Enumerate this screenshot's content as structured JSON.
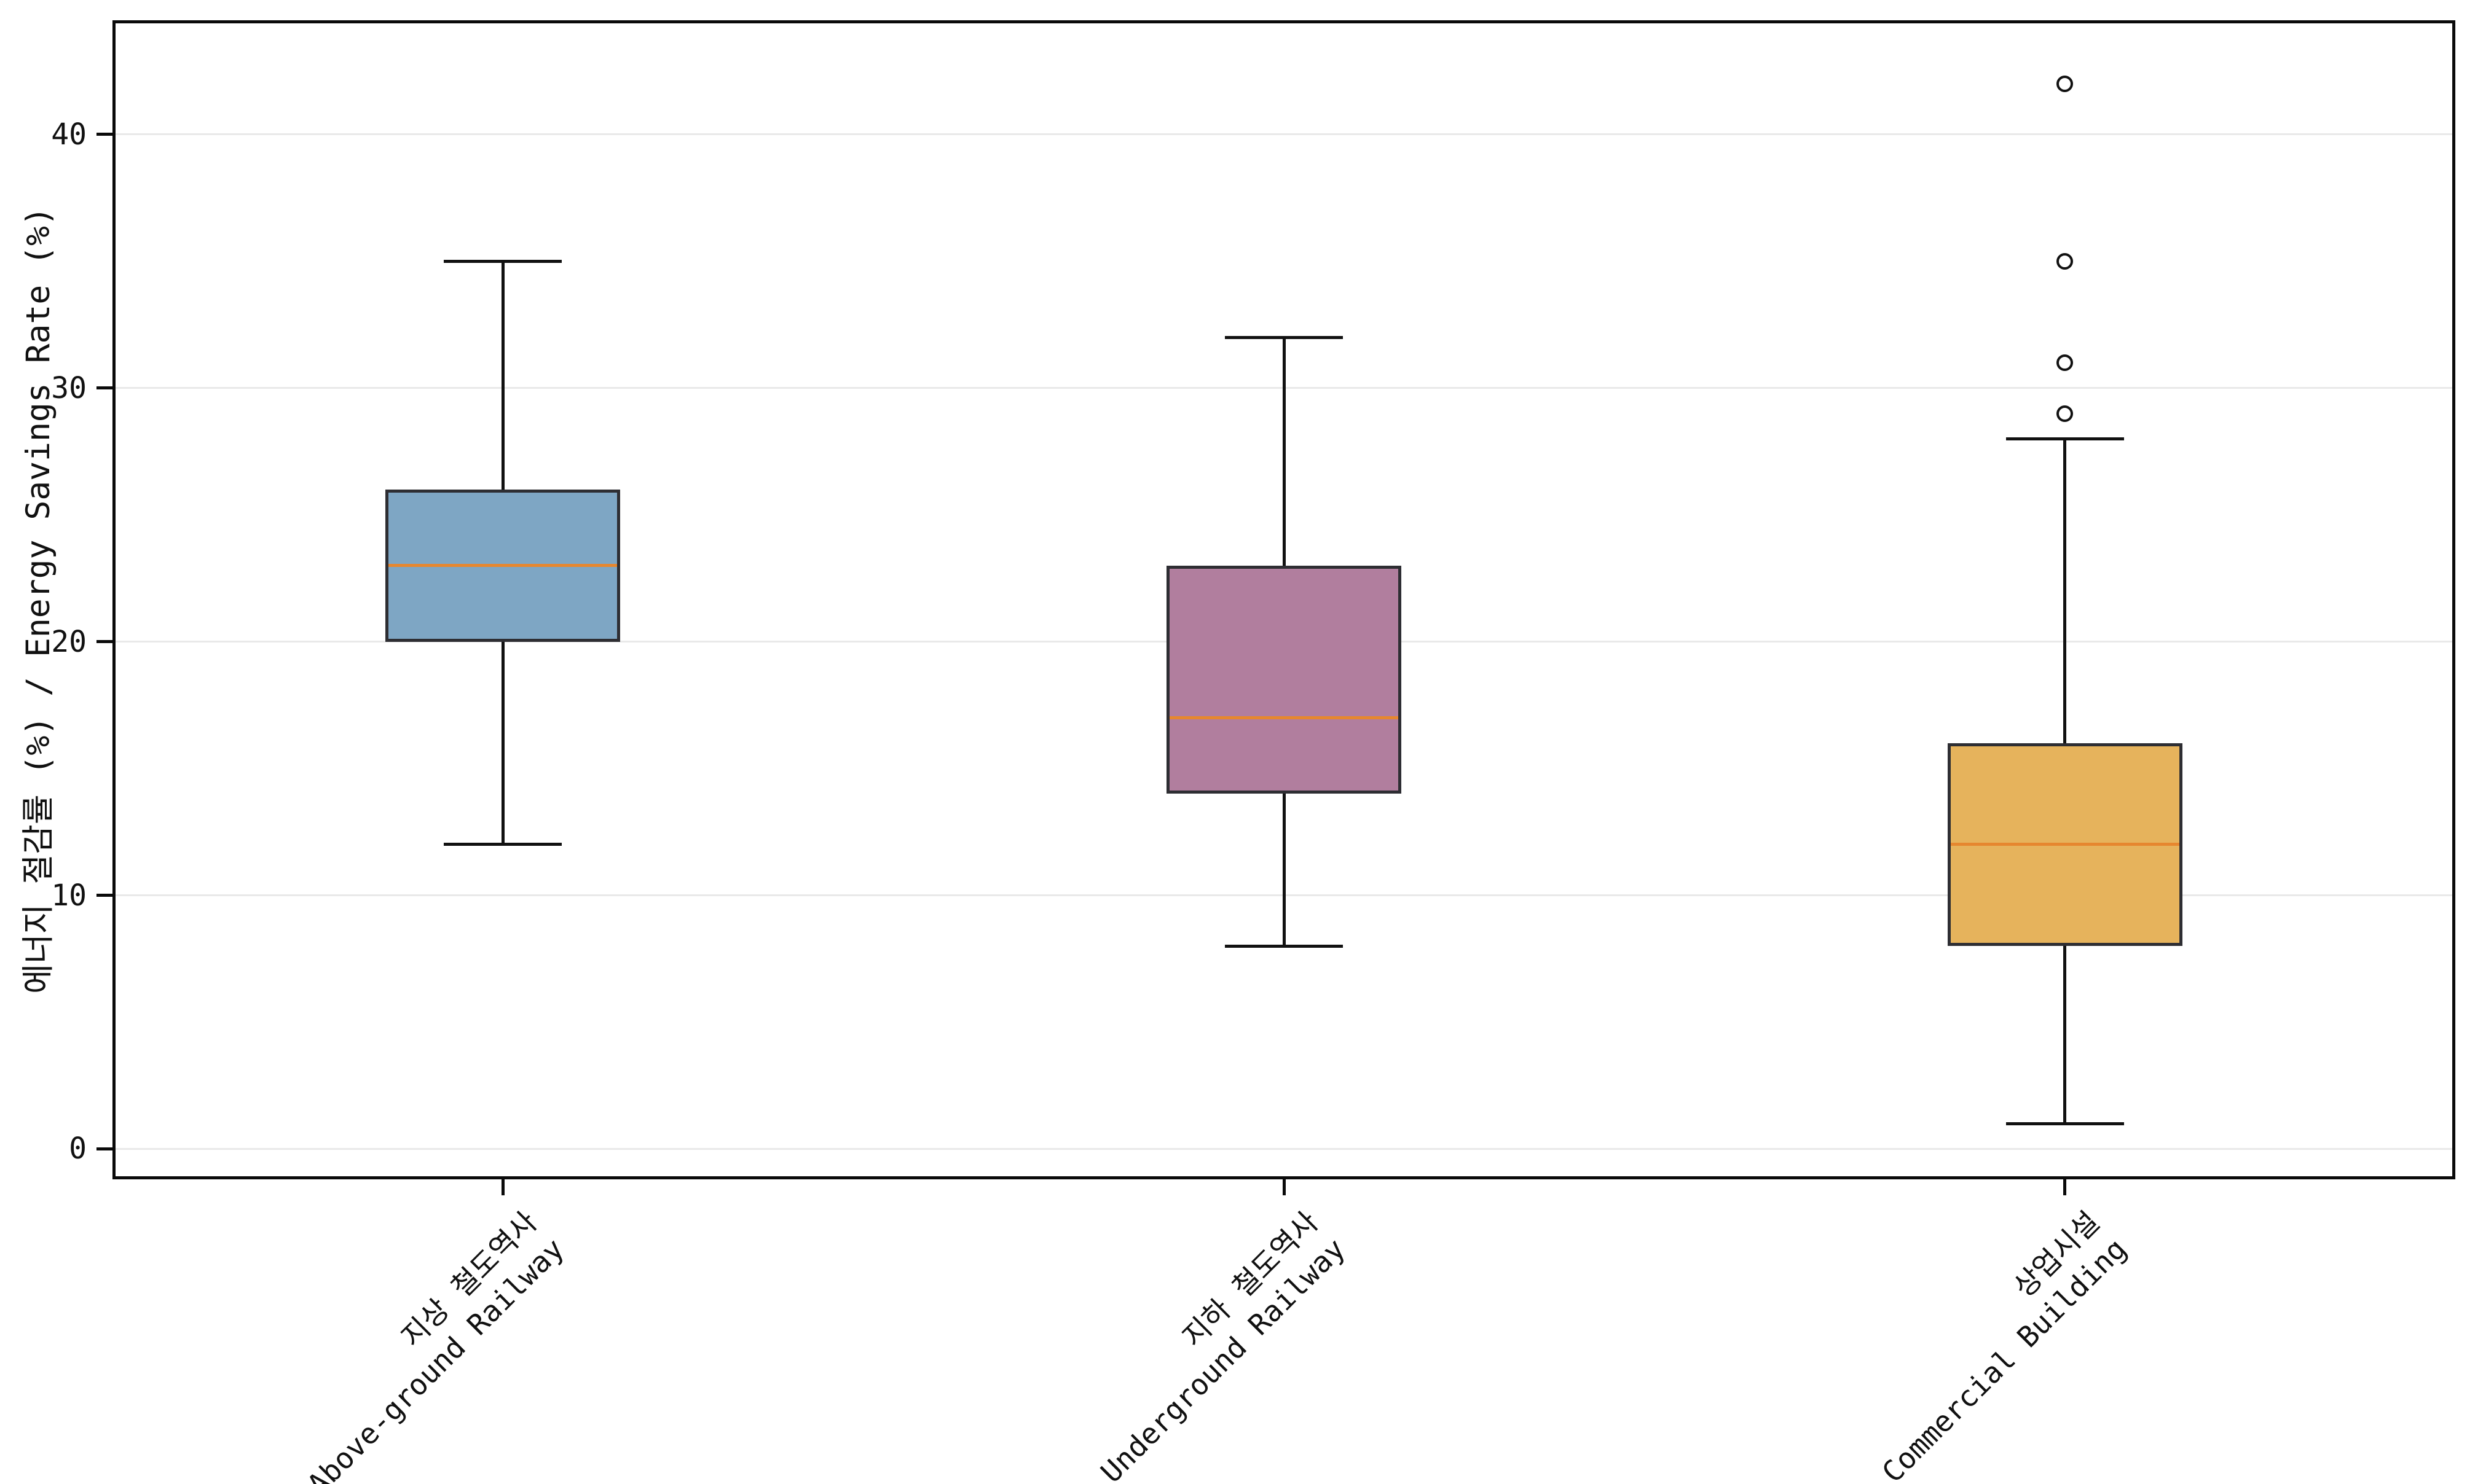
{
  "chart_data": {
    "type": "boxplot",
    "title": "",
    "xlabel": "",
    "ylabel": "에너지 절감률 (%) / Energy Savings Rate (%)",
    "ylim": [
      -1.2,
      44.5
    ],
    "yticks": [
      0,
      10,
      20,
      30,
      40
    ],
    "grid": "horizontal-gridlines-on",
    "legend": "none",
    "categories": [
      {
        "label_ko": "지상 철도역사",
        "label_en": "Above-ground Railway",
        "fill": "#7ea6c4",
        "whisker_low": 12,
        "q1": 20,
        "median": 23,
        "q3": 26,
        "whisker_high": 35,
        "outliers": []
      },
      {
        "label_ko": "지하 철도역사",
        "label_en": "Underground Railway",
        "fill": "#b17e9e",
        "whisker_low": 8,
        "q1": 14,
        "median": 17,
        "q3": 23,
        "whisker_high": 32,
        "outliers": []
      },
      {
        "label_ko": "상업시설",
        "label_en": "Commercial Building",
        "fill": "#e6b35c",
        "whisker_low": 1,
        "q1": 8,
        "median": 12,
        "q3": 16,
        "whisker_high": 28,
        "outliers": [
          29,
          31,
          35,
          42
        ]
      }
    ],
    "colors": {
      "median": "#e6872f",
      "box_edge": "#2e2e33",
      "whisker": "#111111",
      "gridline": "#e9e9e9",
      "spine": "#0a0a0a",
      "background": "#ffffff",
      "tick_text": "#111111"
    }
  }
}
